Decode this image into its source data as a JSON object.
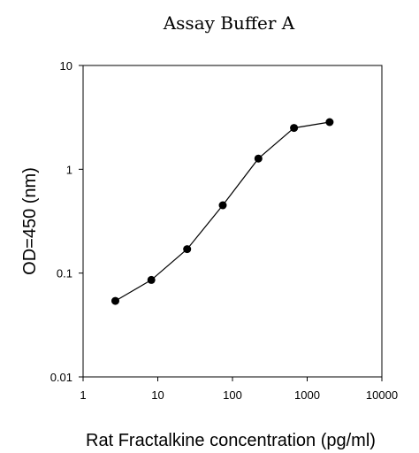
{
  "chart_data": {
    "type": "scatter",
    "title": "Assay Buffer A",
    "xlabel": "Rat Fractalkine concentration (pg/ml)",
    "ylabel": "OD=450 (nm)",
    "xscale": "log",
    "yscale": "log",
    "xlim": [
      1,
      10000
    ],
    "ylim": [
      0.01,
      10
    ],
    "xticks": [
      1,
      10,
      100,
      1000,
      10000
    ],
    "xtick_labels": [
      "1",
      "10",
      "100",
      "1000",
      "10000"
    ],
    "yticks": [
      0.01,
      0.1,
      1,
      10
    ],
    "ytick_labels": [
      "0.01",
      "0.1",
      "1",
      "10"
    ],
    "grid": false,
    "series": [
      {
        "x": [
          2.7,
          8.2,
          24.7,
          74,
          222,
          667,
          2000
        ],
        "y": [
          0.054,
          0.086,
          0.17,
          0.45,
          1.27,
          2.5,
          2.85
        ],
        "marker": "circle",
        "connected": true,
        "color": "#000000"
      }
    ]
  }
}
